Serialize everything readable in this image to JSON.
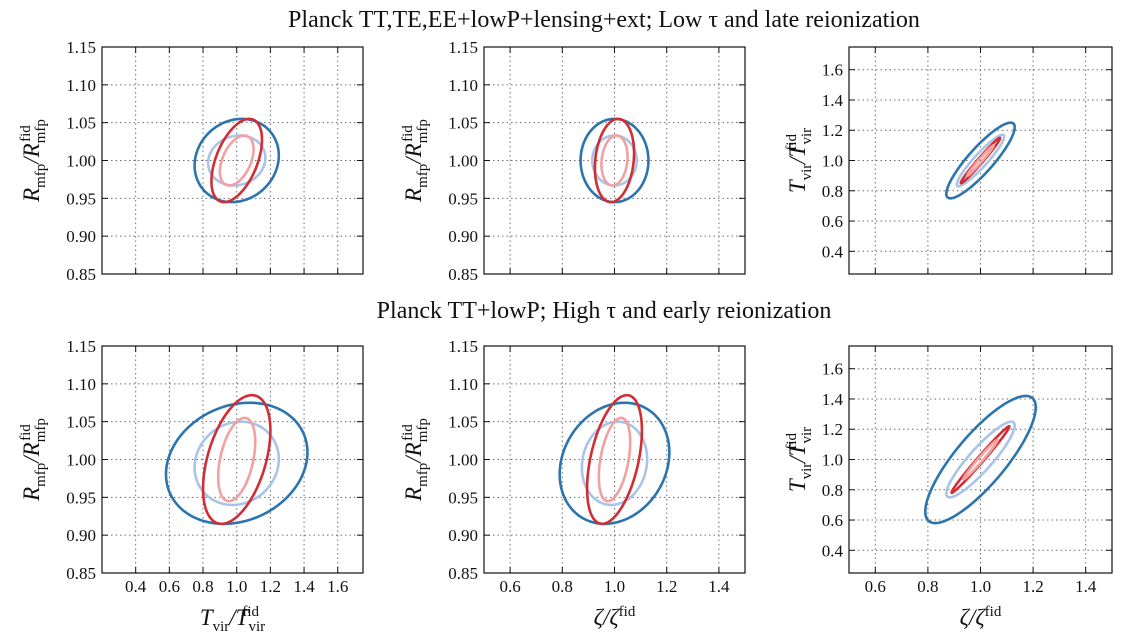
{
  "colors": {
    "planck_1sigma": "#a9c4e9",
    "planck_2sigma": "#2b74ad",
    "combined_1sigma": "#f2a0a0",
    "combined_2sigma": "#d12d35"
  },
  "chart_data": [
    {
      "type": "contour",
      "row_title": "Planck TT,TE,EE+lowP+lensing+ext; Low τ and late reionization",
      "xlabel": "",
      "ylabel": {
        "main": "R",
        "sub": "mfp",
        "mid": "/R",
        "sub2": "mfp",
        "sup2": "fid"
      },
      "xlim": [
        0.2,
        1.75
      ],
      "ylim": [
        0.85,
        1.15
      ],
      "xticks": [
        0.4,
        0.6,
        0.8,
        1.0,
        1.2,
        1.4,
        1.6
      ],
      "yticks": [
        0.85,
        0.9,
        0.95,
        1.0,
        1.05,
        1.1,
        1.15
      ],
      "xtick_labels": [],
      "ytick_labels": [
        "0.85",
        "0.90",
        "0.95",
        "1.00",
        "1.05",
        "1.10",
        "1.15"
      ],
      "grid": true,
      "ellipses": [
        {
          "color": "#2b74ad",
          "cx": 1.0,
          "cy": 1.0,
          "sx": 0.25,
          "sy": 0.055,
          "rho": 0.12
        },
        {
          "color": "#a9c4e9",
          "cx": 1.0,
          "cy": 1.0,
          "sx": 0.17,
          "sy": 0.033,
          "rho": 0.1
        },
        {
          "color": "#d12d35",
          "cx": 1.0,
          "cy": 1.0,
          "sx": 0.15,
          "sy": 0.055,
          "rho": 0.5
        },
        {
          "color": "#f2a0a0",
          "cx": 1.0,
          "cy": 1.0,
          "sx": 0.1,
          "sy": 0.033,
          "rho": 0.45
        }
      ]
    },
    {
      "type": "contour",
      "xlabel": "",
      "ylabel": {
        "main": "R",
        "sub": "mfp",
        "mid": "/R",
        "sub2": "mfp",
        "sup2": "fid"
      },
      "xlim": [
        0.5,
        1.5
      ],
      "ylim": [
        0.85,
        1.15
      ],
      "xticks": [
        0.6,
        0.8,
        1.0,
        1.2,
        1.4
      ],
      "yticks": [
        0.85,
        0.9,
        0.95,
        1.0,
        1.05,
        1.1,
        1.15
      ],
      "xtick_labels": [],
      "ytick_labels": [
        "0.85",
        "0.90",
        "0.95",
        "1.00",
        "1.05",
        "1.10",
        "1.15"
      ],
      "grid": true,
      "ellipses": [
        {
          "color": "#2b74ad",
          "cx": 1.0,
          "cy": 1.0,
          "sx": 0.13,
          "sy": 0.055,
          "rho": 0.0
        },
        {
          "color": "#a9c4e9",
          "cx": 1.0,
          "cy": 1.0,
          "sx": 0.085,
          "sy": 0.033,
          "rho": 0.0
        },
        {
          "color": "#d12d35",
          "cx": 1.0,
          "cy": 1.0,
          "sx": 0.075,
          "sy": 0.055,
          "rho": 0.18
        },
        {
          "color": "#f2a0a0",
          "cx": 1.0,
          "cy": 1.0,
          "sx": 0.05,
          "sy": 0.033,
          "rho": 0.15
        }
      ]
    },
    {
      "type": "contour",
      "xlabel": "",
      "ylabel": {
        "main": "T",
        "sub": "vir",
        "mid": "/T",
        "sub2": "vir",
        "sup2": "fid"
      },
      "xlim": [
        0.5,
        1.5
      ],
      "ylim": [
        0.25,
        1.75
      ],
      "xticks": [
        0.6,
        0.8,
        1.0,
        1.2,
        1.4
      ],
      "yticks": [
        0.4,
        0.6,
        0.8,
        1.0,
        1.2,
        1.4,
        1.6
      ],
      "xtick_labels": [],
      "ytick_labels": [
        "0.4",
        "0.6",
        "0.8",
        "1.0",
        "1.2",
        "1.4",
        "1.6"
      ],
      "grid": true,
      "ellipses": [
        {
          "color": "#2b74ad",
          "cx": 1.0,
          "cy": 1.0,
          "sx": 0.13,
          "sy": 0.25,
          "rho": 0.88
        },
        {
          "color": "#a9c4e9",
          "cx": 1.0,
          "cy": 1.0,
          "sx": 0.09,
          "sy": 0.17,
          "rho": 0.93
        },
        {
          "color": "#d12d35",
          "cx": 1.0,
          "cy": 1.0,
          "sx": 0.075,
          "sy": 0.15,
          "rho": 0.985
        },
        {
          "color": "#f2a0a0",
          "cx": 1.0,
          "cy": 1.0,
          "sx": 0.05,
          "sy": 0.1,
          "rho": 0.985
        }
      ]
    },
    {
      "type": "contour",
      "row_title": "Planck TT+lowP; High τ and early reionization",
      "xlabel": {
        "main": "T",
        "sub": "vir",
        "mid": "/T",
        "sub2": "vir",
        "sup2": "fid"
      },
      "ylabel": {
        "main": "R",
        "sub": "mfp",
        "mid": "/R",
        "sub2": "mfp",
        "sup2": "fid"
      },
      "xlim": [
        0.2,
        1.75
      ],
      "ylim": [
        0.85,
        1.15
      ],
      "xticks": [
        0.4,
        0.6,
        0.8,
        1.0,
        1.2,
        1.4,
        1.6
      ],
      "yticks": [
        0.85,
        0.9,
        0.95,
        1.0,
        1.05,
        1.1,
        1.15
      ],
      "xtick_labels": [
        "0.4",
        "0.6",
        "0.8",
        "1.0",
        "1.2",
        "1.4",
        "1.6"
      ],
      "ytick_labels": [
        "0.85",
        "0.90",
        "0.95",
        "1.00",
        "1.05",
        "1.10",
        "1.15"
      ],
      "grid": true,
      "ellipses": [
        {
          "color": "#2b74ad",
          "cx": 1.0,
          "cy": 0.995,
          "sx": 0.42,
          "sy": 0.08,
          "rho": 0.18
        },
        {
          "color": "#a9c4e9",
          "cx": 1.0,
          "cy": 0.995,
          "sx": 0.25,
          "sy": 0.055,
          "rho": 0.1
        },
        {
          "color": "#d12d35",
          "cx": 1.0,
          "cy": 1.0,
          "sx": 0.2,
          "sy": 0.085,
          "rho": 0.45
        },
        {
          "color": "#f2a0a0",
          "cx": 1.0,
          "cy": 1.0,
          "sx": 0.11,
          "sy": 0.055,
          "rho": 0.42
        }
      ]
    },
    {
      "type": "contour",
      "xlabel": {
        "main": "ζ",
        "sub": "",
        "mid": "/ζ",
        "sub2": "",
        "sup2": "fid"
      },
      "ylabel": {
        "main": "R",
        "sub": "mfp",
        "mid": "/R",
        "sub2": "mfp",
        "sup2": "fid"
      },
      "xlim": [
        0.5,
        1.5
      ],
      "ylim": [
        0.85,
        1.15
      ],
      "xticks": [
        0.6,
        0.8,
        1.0,
        1.2,
        1.4
      ],
      "yticks": [
        0.85,
        0.9,
        0.95,
        1.0,
        1.05,
        1.1,
        1.15
      ],
      "xtick_labels": [
        "0.6",
        "0.8",
        "1.0",
        "1.2",
        "1.4"
      ],
      "ytick_labels": [
        "0.85",
        "0.90",
        "0.95",
        "1.00",
        "1.05",
        "1.10",
        "1.15"
      ],
      "grid": true,
      "ellipses": [
        {
          "color": "#2b74ad",
          "cx": 1.0,
          "cy": 0.995,
          "sx": 0.21,
          "sy": 0.08,
          "rho": 0.18
        },
        {
          "color": "#a9c4e9",
          "cx": 1.0,
          "cy": 0.995,
          "sx": 0.125,
          "sy": 0.055,
          "rho": 0.1
        },
        {
          "color": "#d12d35",
          "cx": 1.0,
          "cy": 1.0,
          "sx": 0.105,
          "sy": 0.085,
          "rho": 0.45
        },
        {
          "color": "#f2a0a0",
          "cx": 1.0,
          "cy": 1.0,
          "sx": 0.06,
          "sy": 0.055,
          "rho": 0.42
        }
      ]
    },
    {
      "type": "contour",
      "xlabel": {
        "main": "ζ",
        "sub": "",
        "mid": "/ζ",
        "sub2": "",
        "sup2": "fid"
      },
      "ylabel": {
        "main": "T",
        "sub": "vir",
        "mid": "/T",
        "sub2": "vir",
        "sup2": "fid"
      },
      "xlim": [
        0.5,
        1.5
      ],
      "ylim": [
        0.25,
        1.75
      ],
      "xticks": [
        0.6,
        0.8,
        1.0,
        1.2,
        1.4
      ],
      "yticks": [
        0.4,
        0.6,
        0.8,
        1.0,
        1.2,
        1.4,
        1.6
      ],
      "xtick_labels": [
        "0.6",
        "0.8",
        "1.0",
        "1.2",
        "1.4"
      ],
      "ytick_labels": [
        "0.4",
        "0.6",
        "0.8",
        "1.0",
        "1.2",
        "1.4",
        "1.6"
      ],
      "grid": true,
      "ellipses": [
        {
          "color": "#2b74ad",
          "cx": 1.0,
          "cy": 1.0,
          "sx": 0.21,
          "sy": 0.42,
          "rho": 0.82
        },
        {
          "color": "#a9c4e9",
          "cx": 1.0,
          "cy": 1.0,
          "sx": 0.13,
          "sy": 0.25,
          "rho": 0.9
        },
        {
          "color": "#d12d35",
          "cx": 1.0,
          "cy": 1.0,
          "sx": 0.11,
          "sy": 0.22,
          "rho": 0.99
        },
        {
          "color": "#f2a0a0",
          "cx": 1.0,
          "cy": 1.0,
          "sx": 0.065,
          "sy": 0.13,
          "rho": 0.985
        }
      ]
    }
  ]
}
